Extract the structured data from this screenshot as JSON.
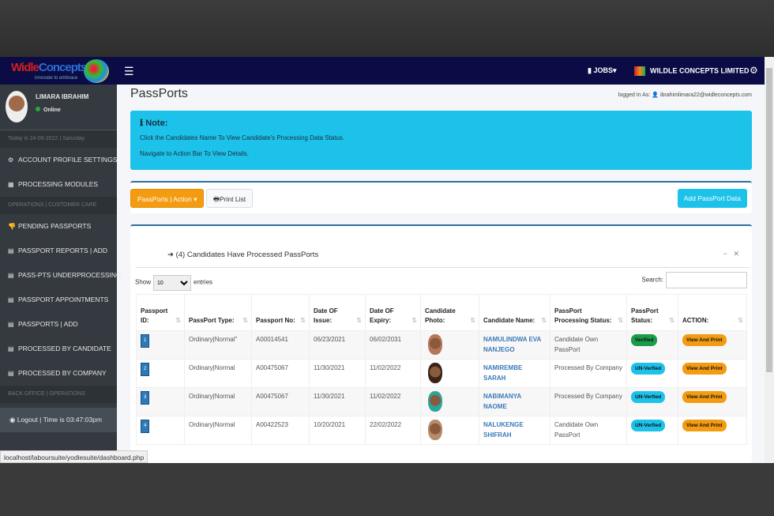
{
  "nav": {
    "logo_text_a": "Widle",
    "logo_text_b": "Concepts",
    "logo_tagline": "innovate to embrace",
    "menu_icon": "bars-icon",
    "jobs": "JOBS",
    "company": "WILDLE CONCEPTS LIMITED",
    "settings_icon": "cogs-icon"
  },
  "sidebar": {
    "user_name": "LIMARA IBRAHIM",
    "status": "Online",
    "date": "Today is 24-09-2022 | Saturday",
    "items_a": [
      {
        "label": "ACCOUNT PROFILE SETTINGS",
        "icon": "⚙"
      },
      {
        "label": "PROCESSING MODULES",
        "icon": "▦"
      }
    ],
    "section1": "OPERATIONS | CUSTOMER CARE",
    "items_b": [
      {
        "label": "PENDING PASSPORTS",
        "icon": "👎"
      },
      {
        "label": "PASSPORT REPORTS | ADD",
        "icon": "▤"
      },
      {
        "label": "PASS-PTS UNDERPROCESSING",
        "icon": "▤"
      },
      {
        "label": "PASSPORT APPOINTMENTS",
        "icon": "▤"
      },
      {
        "label": "PASSPORTS | ADD",
        "icon": "▤"
      },
      {
        "label": "PROCESSED BY CANDIDATE",
        "icon": "▤"
      },
      {
        "label": "PROCESSED BY COMPANY",
        "icon": "▤"
      }
    ],
    "section2": "BACK OFFICE | OPERATIONS",
    "logout": "Logout | Time is 03:47:03pm"
  },
  "main": {
    "title": "PassPorts",
    "logged_label": "logged In As:",
    "logged_user": "ibrahimlimara22@widleconcepts.com",
    "note_title": "Note:",
    "note_line1": "Click the Candidates Name To View Candidate's Processing Data Status.",
    "note_line2": "Navigate to Action Bar To View Details.",
    "action_btn": "PassPorts | Action",
    "print_btn": "Print List",
    "add_btn": "Add PassPort Data",
    "card_title": "(4) Candidates Have Processed PassPorts",
    "show": "Show",
    "entries_value": "10",
    "entries": "entries",
    "search_label": "Search:",
    "search_value": ""
  },
  "table": {
    "headers": [
      "Passport ID:",
      "PassPort Type:",
      "Passport No:",
      "Date OF Issue:",
      "Date OF Expiry:",
      "Candidate Photo:",
      "Candidate Name:",
      "PassPort Processing Status:",
      "PassPort Status:",
      "ACTION:"
    ],
    "rows": [
      {
        "id": "1",
        "type": "Ordinary|Normal\"",
        "no": "A00014541",
        "issue": "06/23/2021",
        "expiry": "06/02/2031",
        "name": "NAMULINDWA EVA NANJEGO",
        "proc": "Candidate Own PassPort",
        "status": "Verified",
        "action": "View And Print"
      },
      {
        "id": "2",
        "type": "Ordinary|Normal",
        "no": "A00475067",
        "issue": "11/30/2021",
        "expiry": "11/02/2022",
        "name": "NAMIREMBE SARAH",
        "proc": "Processed By Company",
        "status": "UN-Verfied",
        "action": "View And Print"
      },
      {
        "id": "3",
        "type": "Ordinary|Normal",
        "no": "A00475067",
        "issue": "11/30/2021",
        "expiry": "11/02/2022",
        "name": "NABIMANYA NAOME",
        "proc": "Processed By Company",
        "status": "UN-Verfied",
        "action": "View And Print"
      },
      {
        "id": "4",
        "type": "Ordinary|Normal",
        "no": "A00422523",
        "issue": "10/20/2021",
        "expiry": "22/02/2022",
        "name": "NALUKENGE SHIFRAH",
        "proc": "Candidate Own PassPort",
        "status": "UN-Verfied",
        "action": "View And Print"
      }
    ]
  },
  "status_url": "localhost/laboursuite/yodlesuite/dashboard.php",
  "colors": {
    "navbar": "#0b0b45",
    "sidebar": "#343a40",
    "info": "#1dc2ea",
    "warning": "#f39c12",
    "success": "#1a9c4a"
  }
}
